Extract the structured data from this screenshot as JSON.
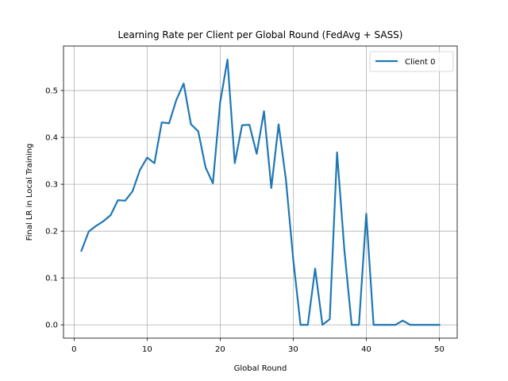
{
  "chart_data": {
    "type": "line",
    "title": "Learning Rate per Client per Global Round (FedAvg + SASS)",
    "xlabel": "Global Round",
    "ylabel": "Final LR in Local Training",
    "xlim": [
      -1.45,
      52.45
    ],
    "ylim": [
      -0.0284,
      0.595
    ],
    "xticks": [
      0,
      10,
      20,
      30,
      40,
      50
    ],
    "yticks": [
      0.0,
      0.1,
      0.2,
      0.3,
      0.4,
      0.5
    ],
    "xtick_labels": [
      "0",
      "10",
      "20",
      "30",
      "40",
      "50"
    ],
    "ytick_labels": [
      "0.0",
      "0.1",
      "0.2",
      "0.3",
      "0.4",
      "0.5"
    ],
    "grid": true,
    "legend": "top-right",
    "color": "#1f77b4",
    "series": [
      {
        "name": "Client 0",
        "x": [
          1,
          2,
          3,
          4,
          5,
          6,
          7,
          8,
          9,
          10,
          11,
          12,
          13,
          14,
          15,
          16,
          17,
          18,
          19,
          20,
          21,
          22,
          23,
          24,
          25,
          26,
          27,
          28,
          29,
          30,
          31,
          32,
          33,
          34,
          35,
          36,
          37,
          38,
          39,
          40,
          41,
          42,
          43,
          44,
          45,
          46,
          47,
          48,
          49,
          50
        ],
        "y": [
          0.158,
          0.199,
          0.211,
          0.221,
          0.234,
          0.266,
          0.265,
          0.285,
          0.33,
          0.357,
          0.345,
          0.432,
          0.43,
          0.48,
          0.515,
          0.428,
          0.413,
          0.336,
          0.302,
          0.475,
          0.566,
          0.345,
          0.426,
          0.427,
          0.365,
          0.456,
          0.292,
          0.428,
          0.31,
          0.14,
          0.0,
          0.0,
          0.12,
          0.0,
          0.012,
          0.368,
          0.16,
          0.0,
          0.0,
          0.237,
          0.0,
          0.0,
          0.0,
          0.0,
          0.009,
          0.0,
          0.0,
          0.0,
          0.0,
          0.0
        ]
      }
    ]
  }
}
